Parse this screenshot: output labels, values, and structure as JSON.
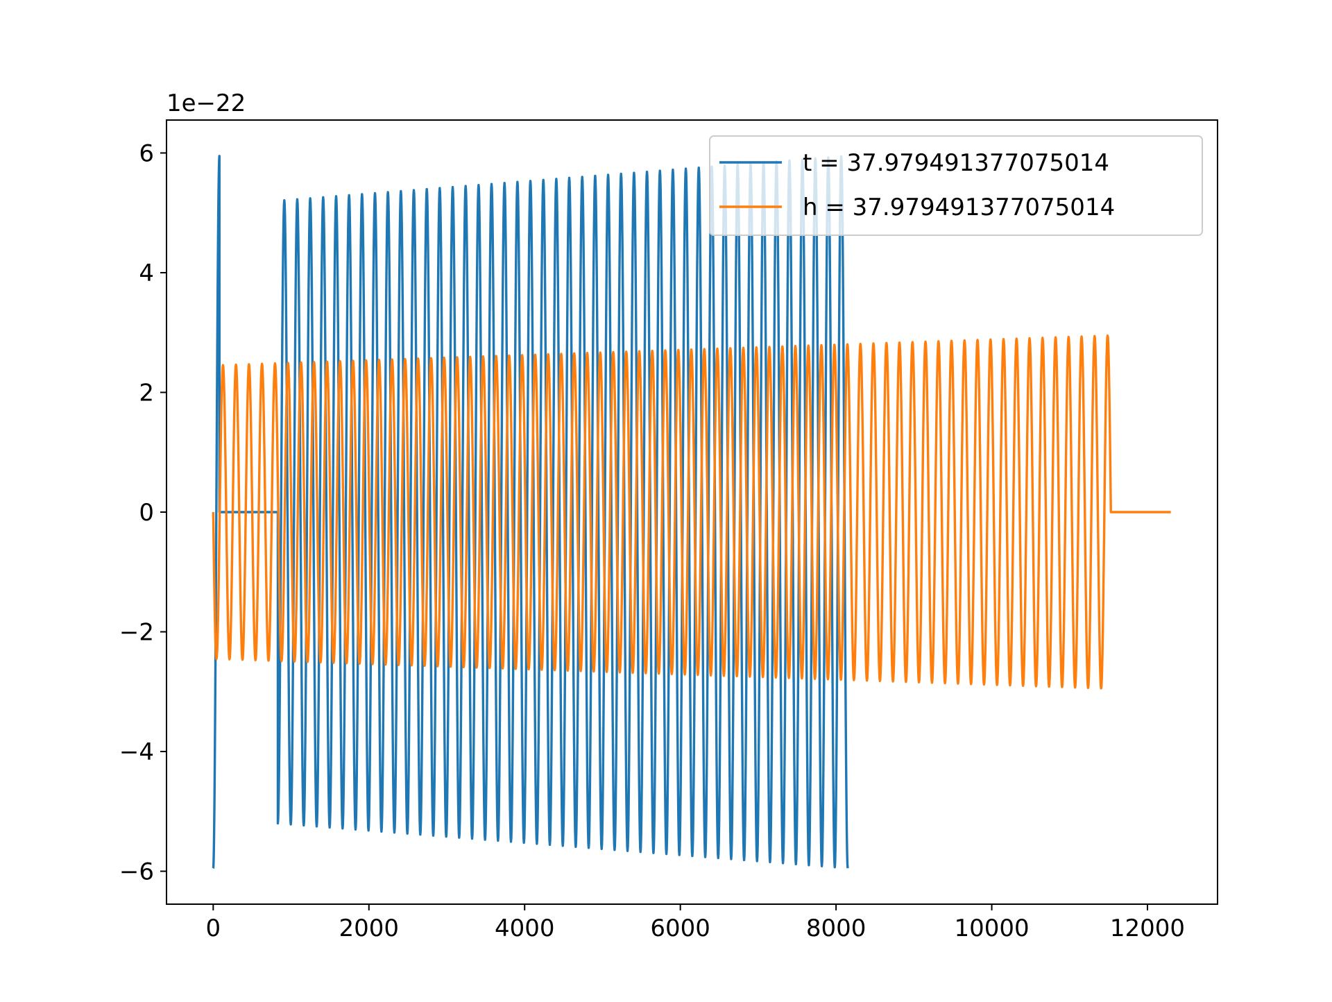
{
  "chart_data": {
    "type": "line",
    "title": "",
    "xlabel": "",
    "ylabel": "",
    "y_offset_text": "1e−22",
    "xlim": [
      -600,
      12900
    ],
    "ylim": [
      -6.55,
      6.55
    ],
    "x_ticks": [
      0,
      2000,
      4000,
      6000,
      8000,
      10000,
      12000
    ],
    "x_tick_labels": [
      "0",
      "2000",
      "4000",
      "6000",
      "8000",
      "10000",
      "12000"
    ],
    "y_ticks": [
      -6,
      -4,
      -2,
      0,
      2,
      4,
      6
    ],
    "y_tick_labels": [
      "−6",
      "−4",
      "−2",
      "0",
      "2",
      "4",
      "6"
    ],
    "grid": false,
    "legend_position": "top-right",
    "series": [
      {
        "name": "t = 37.979491377075014",
        "color": "#1f77b4",
        "segments": [
          {
            "x_start": 0,
            "x_end": 80,
            "amp_start": 5.95,
            "amp_end": 5.95,
            "cycles": 0.5,
            "phase": 0.25
          },
          {
            "x_start": 80,
            "x_end": 830,
            "constant": 0.0
          },
          {
            "x_start": 830,
            "x_end": 8150,
            "amp_start": 5.2,
            "amp_end": 5.95,
            "cycles": 44,
            "phase": 0.25
          }
        ]
      },
      {
        "name": "h = 37.979491377075014",
        "color": "#ff7f0e",
        "segments": [
          {
            "x_start": 0,
            "x_end": 11530,
            "amp_start": 2.45,
            "amp_end": 2.95,
            "cycles": 69,
            "phase": 0.0
          },
          {
            "x_start": 11530,
            "x_end": 12300,
            "constant": 0.0
          }
        ]
      }
    ]
  }
}
